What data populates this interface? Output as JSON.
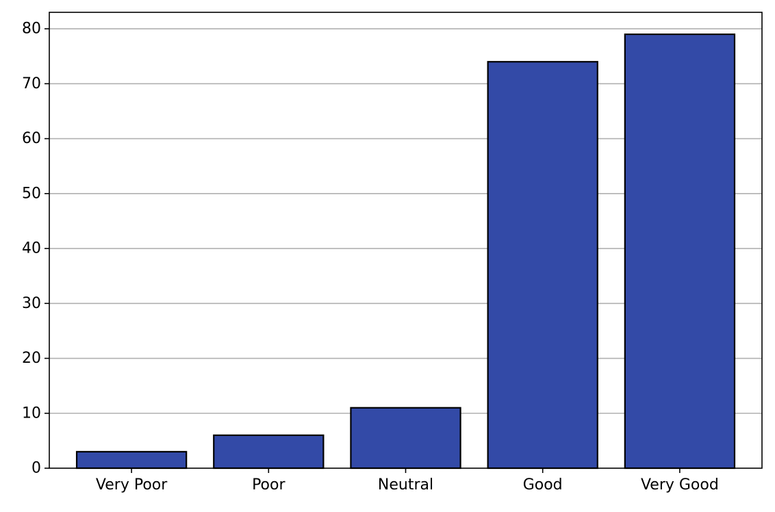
{
  "chart_data": {
    "type": "bar",
    "title": "",
    "xlabel": "",
    "ylabel": "",
    "categories": [
      "Very Poor",
      "Poor",
      "Neutral",
      "Good",
      "Very Good"
    ],
    "values": [
      3,
      6,
      11,
      74,
      79
    ],
    "ylim": [
      0,
      83
    ],
    "yticks": [
      0,
      10,
      20,
      30,
      40,
      50,
      60,
      70,
      80
    ],
    "grid": {
      "y": true,
      "x": false
    },
    "colors": {
      "bar_fill": "#334AA7",
      "bar_edge": "#000000",
      "grid": "#b0b0b0",
      "axis": "#000000"
    }
  }
}
